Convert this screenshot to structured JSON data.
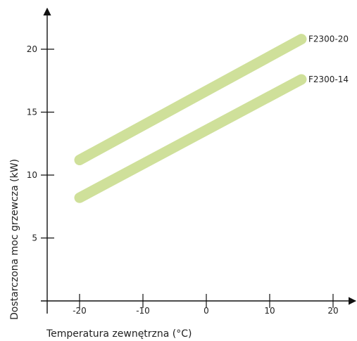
{
  "chart_data": {
    "type": "line",
    "title": "",
    "xlabel": "Temperatura zewnętrzna (°C)",
    "ylabel": "Dostarczona moc grzewcza (kW)",
    "xlim": [
      -25,
      22
    ],
    "ylim": [
      0,
      23
    ],
    "x_ticks": [
      "-20",
      "-10",
      "0",
      "10",
      "20"
    ],
    "y_ticks": [
      "5",
      "10",
      "15",
      "20"
    ],
    "grid": false,
    "legend": "inline-right",
    "line_color": "#cfe09a",
    "series": [
      {
        "name": "F2300-20",
        "x": [
          -20,
          15
        ],
        "y": [
          11.2,
          20.8
        ]
      },
      {
        "name": "F2300-14",
        "x": [
          -20,
          15
        ],
        "y": [
          8.2,
          17.6
        ]
      }
    ]
  }
}
